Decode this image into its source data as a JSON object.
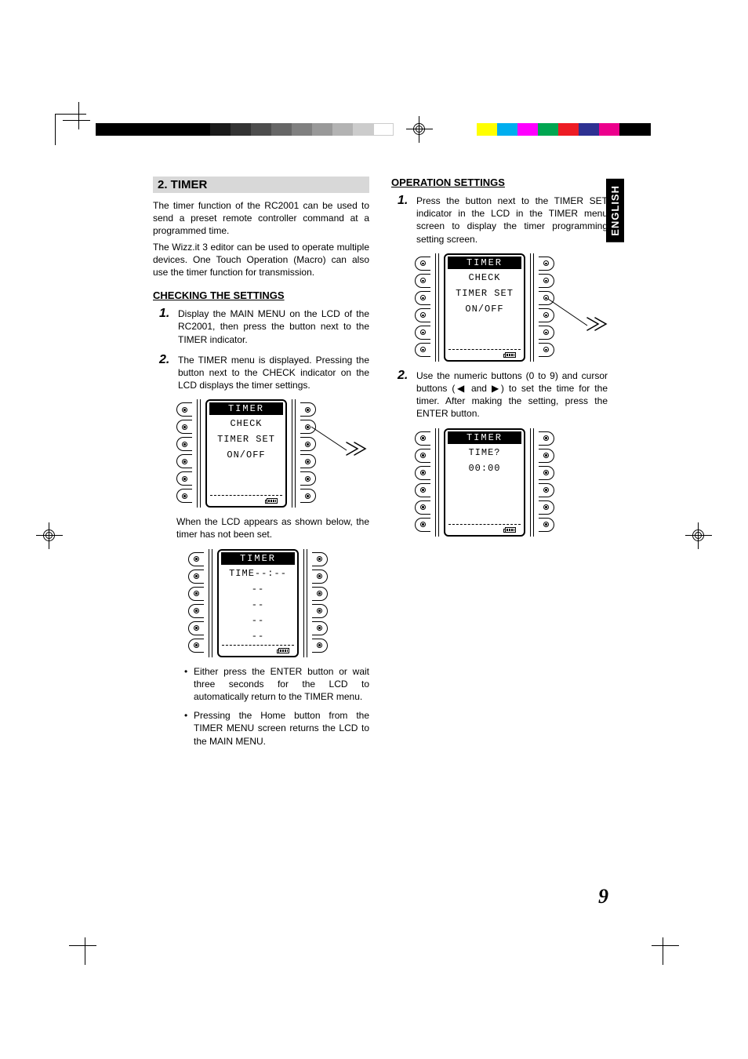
{
  "language_tab": "ENGLISH",
  "page_number": "9",
  "registration": {
    "colors": [
      "#ffff00",
      "#00aeef",
      "#ff00ff",
      "#00a651",
      "#ed1c24",
      "#2e3192",
      "#ec008c"
    ],
    "gray_ramp": [
      "#000000",
      "#1a1a1a",
      "#333333",
      "#4d4d4d",
      "#666666",
      "#808080",
      "#999999",
      "#b3b3b3",
      "#cccccc",
      "#ffffff"
    ]
  },
  "left_col": {
    "section_title": " 2. TIMER",
    "intro_p1": "The timer function of the RC2001 can be used to send a preset remote controller command at a programmed time.",
    "intro_p2": "The Wizz.it 3 editor can be used to operate multiple devices. One Touch Operation (Macro) can also use the timer function for transmission.",
    "subhead": "CHECKING THE SETTINGS",
    "step1": "Display the MAIN MENU on the LCD of the RC2001, then press the button next to the  TIMER  indicator.",
    "step2": "The TIMER menu is displayed. Pressing the button next to the  CHECK  indicator on the LCD displays the timer settings.",
    "lcd1": {
      "title": "TIMER",
      "rows": [
        "CHECK",
        "TIMER SET",
        "ON/OFF",
        "",
        ""
      ]
    },
    "note1": "When the LCD appears as shown below, the timer has not been set.",
    "lcd2": {
      "title": "TIMER",
      "rows": [
        "TIME--:--",
        "--",
        "--",
        "--",
        "--"
      ]
    },
    "bullet1": "Either press the ENTER button or wait three seconds for the LCD to automatically return to the TIMER menu.",
    "bullet2": "Pressing the Home button from the TIMER MENU screen returns the LCD to the MAIN MENU."
  },
  "right_col": {
    "subhead": "OPERATION SETTINGS",
    "step1": "Press the button next to the  TIMER SET indicator in the LCD in the TIMER menu screen to display the timer programming setting screen.",
    "lcd1": {
      "title": "TIMER",
      "rows": [
        "CHECK",
        "TIMER SET",
        "ON/OFF",
        "",
        ""
      ]
    },
    "step2_prefix": "Use the numeric buttons (0 to 9) and cursor buttons (",
    "step2_mid": " and ",
    "step2_suffix": ") to set the time for the timer. After making the setting, press the ENTER button.",
    "lcd2": {
      "title": "TIMER",
      "rows": [
        "TIME?",
        "00:00",
        "",
        "",
        ""
      ]
    }
  }
}
